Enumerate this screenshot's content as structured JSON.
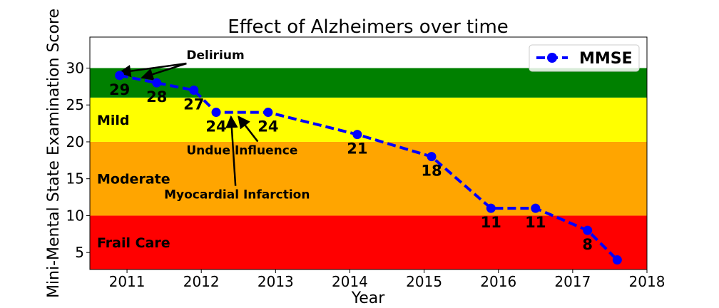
{
  "chart_data": {
    "type": "line",
    "title": "Effect of Alzheimers over time",
    "xlabel": "Year",
    "ylabel": "Mini-Mental State Examination Score",
    "xlim": [
      2010.5,
      2018
    ],
    "ylim": [
      2.7,
      34.2
    ],
    "xticks": [
      2011,
      2012,
      2013,
      2014,
      2015,
      2016,
      2017,
      2018
    ],
    "yticks": [
      5,
      10,
      15,
      20,
      25,
      30
    ],
    "grid": false,
    "legend": {
      "position": "top-right"
    },
    "series": [
      {
        "name": "MMSE",
        "color": "#0000ff",
        "line_style": "dashed",
        "marker": "circle",
        "x": [
          2010.9,
          2011.4,
          2011.9,
          2012.2,
          2012.9,
          2014.1,
          2015.1,
          2015.9,
          2016.5,
          2017.2,
          2017.6
        ],
        "y": [
          29,
          28,
          27,
          24,
          24,
          21,
          18,
          11,
          11,
          8,
          4
        ],
        "labels": [
          "29",
          "28",
          "27",
          "24",
          "24",
          "21",
          "18",
          "11",
          "11",
          "8",
          ""
        ]
      }
    ],
    "bands": [
      {
        "label": "Frail Care",
        "y0": 2.7,
        "y1": 10,
        "color": "#ff0000"
      },
      {
        "label": "Moderate",
        "y0": 10,
        "y1": 20,
        "color": "#ffa500"
      },
      {
        "label": "Mild",
        "y0": 20,
        "y1": 26,
        "color": "#ffff00"
      },
      {
        "label": "",
        "y0": 26,
        "y1": 30,
        "color": "#008000"
      }
    ],
    "annotations": [
      {
        "text": "Delirium",
        "text_x": 2011.8,
        "text_y": 31.2,
        "arrows": [
          [
            2010.9,
            29
          ],
          [
            2011.2,
            28.3
          ]
        ]
      },
      {
        "text": "Undue Influence",
        "text_x": 2011.8,
        "text_y": 18.3,
        "arrows": [
          [
            2012.5,
            24
          ]
        ]
      },
      {
        "text": "Myocardial Infarction",
        "text_x": 2011.5,
        "text_y": 12.3,
        "arrows": [
          [
            2012.4,
            24
          ]
        ]
      }
    ]
  }
}
